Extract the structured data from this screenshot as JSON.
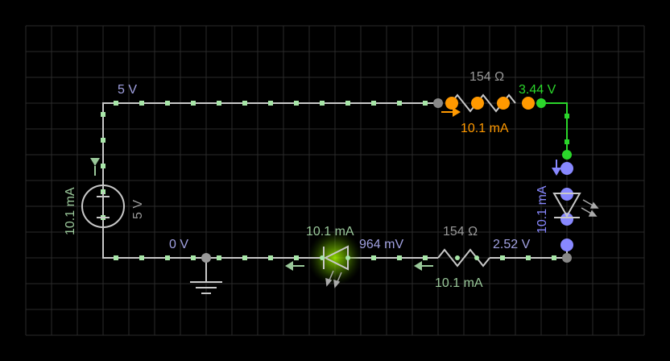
{
  "colors": {
    "background": "#000000",
    "grid": "#2a2a2a",
    "wire": "#c8c8c8",
    "node_dot": "#a8e6a8",
    "hi_node": "#2bd62b",
    "resistor_top": "#ff9900",
    "led_blue": "#8888ff",
    "led_green_glow": "#aaff00",
    "neutral_label": "#9a9a9a",
    "voltage_label": "#a0a0e0",
    "current_label": "#9ac89a"
  },
  "labels": {
    "top_left_voltage": "5 V",
    "top_resistor_value": "154 Ω",
    "top_right_voltage": "3.44 V",
    "top_resistor_current": "10.1 mA",
    "source_current": "10.1 mA",
    "source_voltage": "5 V",
    "ground_voltage": "0 V",
    "green_led_current": "10.1 mA",
    "green_led_voltage": "964 mV",
    "bottom_resistor_value": "154 Ω",
    "bottom_right_voltage": "2.52 V",
    "bottom_resistor_current": "10.1 mA",
    "blue_led_current": "10.1 mA"
  },
  "components": {
    "source": "voltage-source-icon",
    "top_resistor": "resistor-icon",
    "bottom_resistor": "resistor-icon",
    "green_led": "led-icon",
    "blue_led": "led-icon",
    "ground": "ground-icon"
  }
}
